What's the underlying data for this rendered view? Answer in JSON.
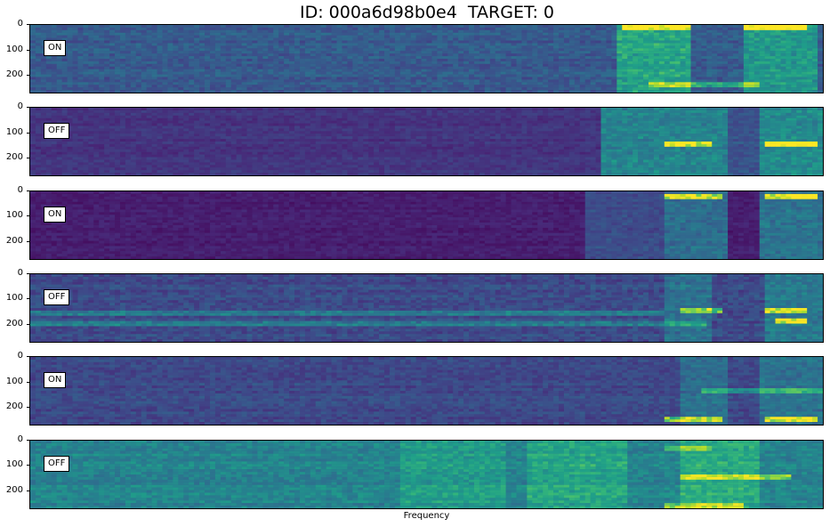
{
  "title": "ID: 000a6d98b0e4  TARGET: 0",
  "xlabel": "Frequency",
  "colors": {
    "frame": "#000000",
    "label_bg": "#ffffff"
  },
  "chart_data": {
    "type": "heatmap",
    "colormap": "viridis",
    "xlabel": "Frequency",
    "y_ticks": [
      "0",
      "100",
      "200"
    ],
    "y_tick_values": [
      0,
      100,
      200
    ],
    "ylim": [
      273,
      0
    ],
    "panels": [
      {
        "label": "ON",
        "base": 0.28,
        "noise": 0.08,
        "bands": [
          {
            "x0": 0.74,
            "x1": 0.83,
            "v": 0.3
          },
          {
            "x0": 0.9,
            "x1": 0.99,
            "v": 0.25
          }
        ],
        "lines": [
          {
            "y": 10,
            "x0": 0.75,
            "x1": 0.83,
            "v": 0.55
          },
          {
            "y": 10,
            "x0": 0.9,
            "x1": 0.98,
            "v": 0.6
          },
          {
            "y": 245,
            "x0": 0.78,
            "x1": 0.92,
            "v": 0.35
          }
        ]
      },
      {
        "label": "OFF",
        "base": 0.15,
        "noise": 0.05,
        "bands": [
          {
            "x0": 0.72,
            "x1": 0.88,
            "v": 0.3
          },
          {
            "x0": 0.88,
            "x1": 0.92,
            "v": 0.1
          },
          {
            "x0": 0.92,
            "x1": 1.0,
            "v": 0.33
          }
        ],
        "lines": [
          {
            "y": 145,
            "x0": 0.8,
            "x1": 0.86,
            "v": 0.55
          },
          {
            "y": 145,
            "x0": 0.93,
            "x1": 0.99,
            "v": 0.65
          }
        ]
      },
      {
        "label": "ON",
        "base": 0.08,
        "noise": 0.04,
        "bands": [
          {
            "x0": 0.7,
            "x1": 0.8,
            "v": 0.15
          },
          {
            "x0": 0.8,
            "x1": 0.88,
            "v": 0.28
          },
          {
            "x0": 0.92,
            "x1": 1.0,
            "v": 0.3
          }
        ],
        "lines": [
          {
            "y": 20,
            "x0": 0.8,
            "x1": 0.87,
            "v": 0.6
          },
          {
            "y": 20,
            "x0": 0.93,
            "x1": 0.99,
            "v": 0.7
          }
        ]
      },
      {
        "label": "OFF",
        "base": 0.22,
        "noise": 0.08,
        "bands": [
          {
            "x0": 0.8,
            "x1": 0.86,
            "v": 0.15
          },
          {
            "x0": 0.93,
            "x1": 1.0,
            "v": 0.18
          }
        ],
        "lines": [
          {
            "y": 160,
            "x0": 0.0,
            "x1": 0.8,
            "v": 0.22
          },
          {
            "y": 200,
            "x0": 0.0,
            "x1": 0.85,
            "v": 0.2
          },
          {
            "y": 150,
            "x0": 0.82,
            "x1": 0.87,
            "v": 0.5
          },
          {
            "y": 150,
            "x0": 0.93,
            "x1": 0.98,
            "v": 0.55
          },
          {
            "y": 190,
            "x0": 0.94,
            "x1": 0.98,
            "v": 0.6
          }
        ]
      },
      {
        "label": "ON",
        "base": 0.22,
        "noise": 0.07,
        "bands": [
          {
            "x0": 0.82,
            "x1": 0.88,
            "v": 0.14
          },
          {
            "x0": 0.92,
            "x1": 1.0,
            "v": 0.16
          }
        ],
        "lines": [
          {
            "y": 250,
            "x0": 0.8,
            "x1": 0.87,
            "v": 0.6
          },
          {
            "y": 250,
            "x0": 0.93,
            "x1": 0.99,
            "v": 0.65
          },
          {
            "y": 140,
            "x0": 0.85,
            "x1": 1.0,
            "v": 0.3
          }
        ]
      },
      {
        "label": "OFF",
        "base": 0.45,
        "noise": 0.09,
        "bands": [
          {
            "x0": 0.47,
            "x1": 0.6,
            "v": 0.1
          },
          {
            "x0": 0.63,
            "x1": 0.75,
            "v": 0.14
          },
          {
            "x0": 0.82,
            "x1": 0.92,
            "v": 0.16
          }
        ],
        "lines": [
          {
            "y": 150,
            "x0": 0.82,
            "x1": 0.96,
            "v": 0.4
          },
          {
            "y": 260,
            "x0": 0.8,
            "x1": 0.9,
            "v": 0.35
          },
          {
            "y": 30,
            "x0": 0.8,
            "x1": 0.86,
            "v": 0.25
          }
        ]
      }
    ]
  }
}
